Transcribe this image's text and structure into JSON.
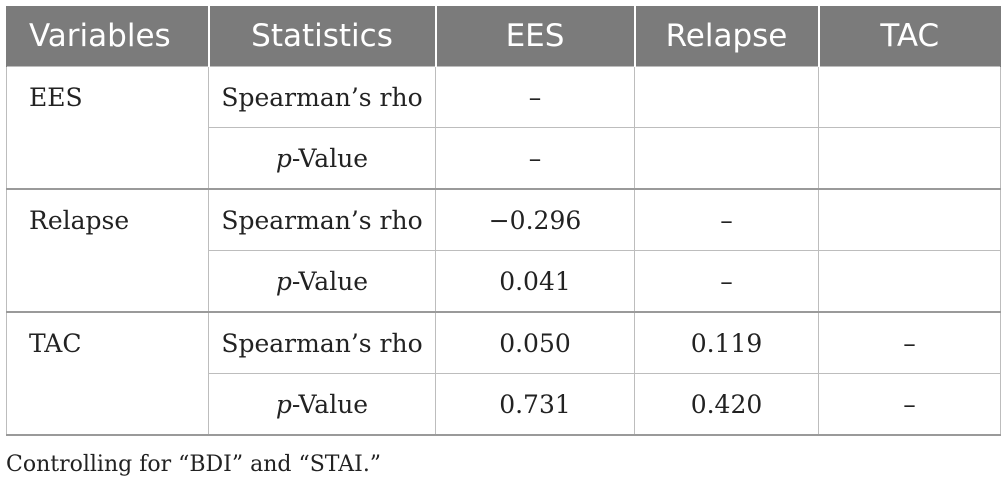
{
  "table": {
    "headers": [
      "Variables",
      "Statistics",
      "EES",
      "Relapse",
      "TAC"
    ],
    "groups": [
      {
        "variable": "EES",
        "rows": [
          {
            "statistic": "Spearman’s rho",
            "cells": [
              "–",
              "",
              ""
            ]
          },
          {
            "statistic_prefix": "p",
            "statistic_suffix": "-Value",
            "cells": [
              "–",
              "",
              ""
            ]
          }
        ]
      },
      {
        "variable": "Relapse",
        "rows": [
          {
            "statistic": "Spearman’s rho",
            "cells": [
              "−0.296",
              "–",
              ""
            ]
          },
          {
            "statistic_prefix": "p",
            "statistic_suffix": "-Value",
            "cells": [
              "0.041",
              "–",
              ""
            ]
          }
        ]
      },
      {
        "variable": "TAC",
        "rows": [
          {
            "statistic": "Spearman’s rho",
            "cells": [
              "0.050",
              "0.119",
              "–"
            ]
          },
          {
            "statistic_prefix": "p",
            "statistic_suffix": "-Value",
            "cells": [
              "0.731",
              "0.420",
              "–"
            ]
          }
        ]
      }
    ]
  },
  "footnote": "Controlling for “BDI” and “STAI.”"
}
